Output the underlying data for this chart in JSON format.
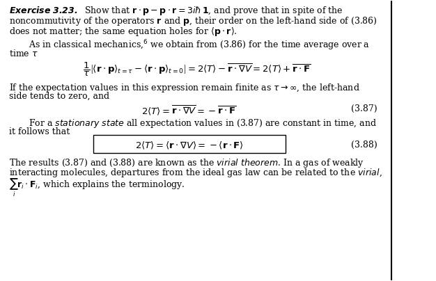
{
  "background_color": "#ffffff",
  "text_color": "#000000",
  "figsize": [
    6.26,
    4.04
  ],
  "dpi": 100
}
